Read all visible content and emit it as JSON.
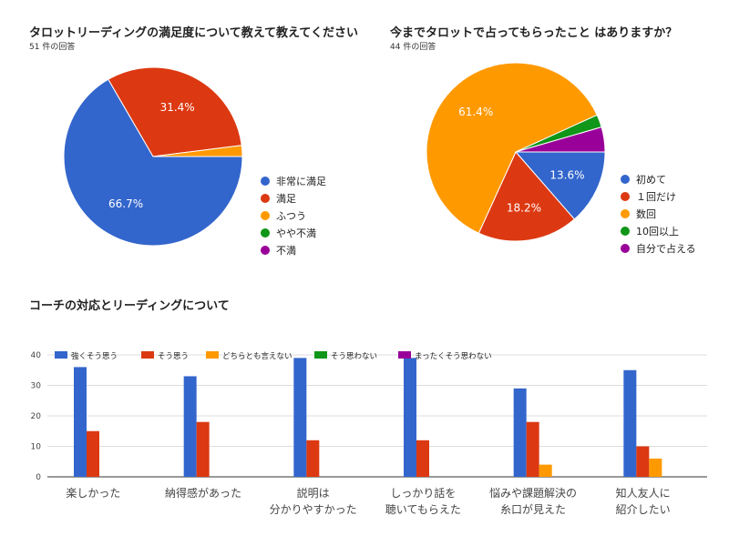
{
  "colors": {
    "blue": "#3366cc",
    "red": "#dc3912",
    "orange": "#ff9900",
    "green": "#109618",
    "purple": "#990099"
  },
  "chart_data": [
    {
      "type": "pie",
      "title": "タロットリーディングの満足度について教えて教えてください",
      "subtitle": "51 件の回答",
      "labels": [
        "非常に満足",
        "満足",
        "ふつう",
        "やや不満",
        "不満"
      ],
      "values": [
        66.7,
        31.4,
        2.0,
        0,
        0
      ],
      "value_labels": [
        "66.7%",
        "31.4%",
        "",
        "",
        ""
      ],
      "legend": "right"
    },
    {
      "type": "pie",
      "title": "今までタロットで占ってもらったこと はありますか？",
      "subtitle": "44 件の回答",
      "labels": [
        "初めて",
        "１回だけ",
        "数回",
        "10回以上",
        "自分で占える"
      ],
      "values": [
        13.6,
        18.2,
        61.4,
        2.3,
        4.5
      ],
      "value_labels": [
        "13.6%",
        "18.2%",
        "61.4%",
        "",
        ""
      ],
      "legend": "right"
    },
    {
      "type": "bar",
      "title": "コーチの対応とリーディングについて",
      "categories": [
        "楽しかった",
        "納得感があった",
        "説明は\n分かりやすかった",
        "しっかり話を\n聴いてもらえた",
        "悩みや課題解決の\n糸口が見えた",
        "知人友人に\n紹介したい"
      ],
      "series": [
        {
          "name": "強くそう思う",
          "values": [
            36,
            33,
            39,
            39,
            29,
            35
          ]
        },
        {
          "name": "そう思う",
          "values": [
            15,
            18,
            12,
            12,
            18,
            10
          ]
        },
        {
          "name": "どちらとも言えない",
          "values": [
            0,
            0,
            0,
            0,
            4,
            6
          ]
        },
        {
          "name": "そう思わない",
          "values": [
            0,
            0,
            0,
            0,
            0,
            0
          ]
        },
        {
          "name": "まったくそう思わない",
          "values": [
            0,
            0,
            0,
            0,
            0,
            0
          ]
        }
      ],
      "yticks": [
        0,
        10,
        20,
        30,
        40
      ],
      "ylim": [
        0,
        40
      ],
      "legend": "top",
      "grid": true
    }
  ]
}
